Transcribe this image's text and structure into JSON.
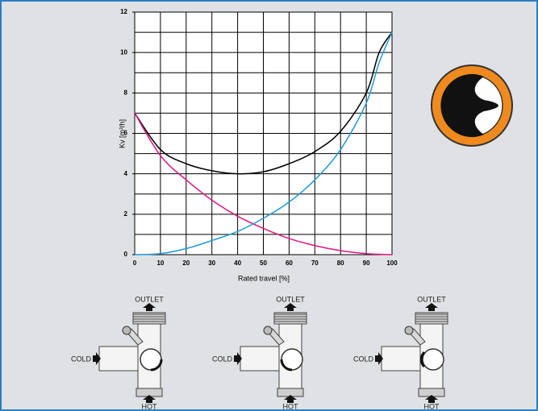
{
  "chart_data": {
    "type": "line",
    "x_label": "Rated travel [%]",
    "y_label": "Kv [m³/h]",
    "x": [
      0,
      10,
      20,
      30,
      40,
      50,
      60,
      70,
      80,
      90,
      95,
      100
    ],
    "series": [
      {
        "color": "#000000",
        "values": [
          7,
          5.2,
          4.5,
          4.15,
          4.0,
          4.1,
          4.5,
          5.1,
          6.1,
          8.0,
          10.0,
          11
        ]
      },
      {
        "color": "#e0157f",
        "values": [
          7,
          4.9,
          3.7,
          2.7,
          1.9,
          1.3,
          0.8,
          0.45,
          0.2,
          0.05,
          0.02,
          0
        ]
      },
      {
        "color": "#1e9ad6",
        "values": [
          0,
          0.05,
          0.3,
          0.7,
          1.15,
          1.8,
          2.6,
          3.7,
          5.2,
          7.5,
          9.5,
          11
        ]
      }
    ],
    "xlim": [
      0,
      100
    ],
    "xticks": [
      0,
      10,
      20,
      30,
      40,
      50,
      60,
      70,
      80,
      90,
      100
    ],
    "ylim": [
      0,
      12
    ],
    "yticks": [
      0,
      2,
      4,
      6,
      8,
      10,
      12
    ],
    "grid": true,
    "y_grid_step": 1
  },
  "diagrams": [
    {
      "outlet": "OUTLET",
      "inlet": "COLD",
      "bottom": "HOT"
    },
    {
      "outlet": "OUTLET",
      "inlet": "COLD",
      "bottom": "HOT"
    },
    {
      "outlet": "OUTLET",
      "inlet": "COLD",
      "bottom": "HOT"
    }
  ]
}
